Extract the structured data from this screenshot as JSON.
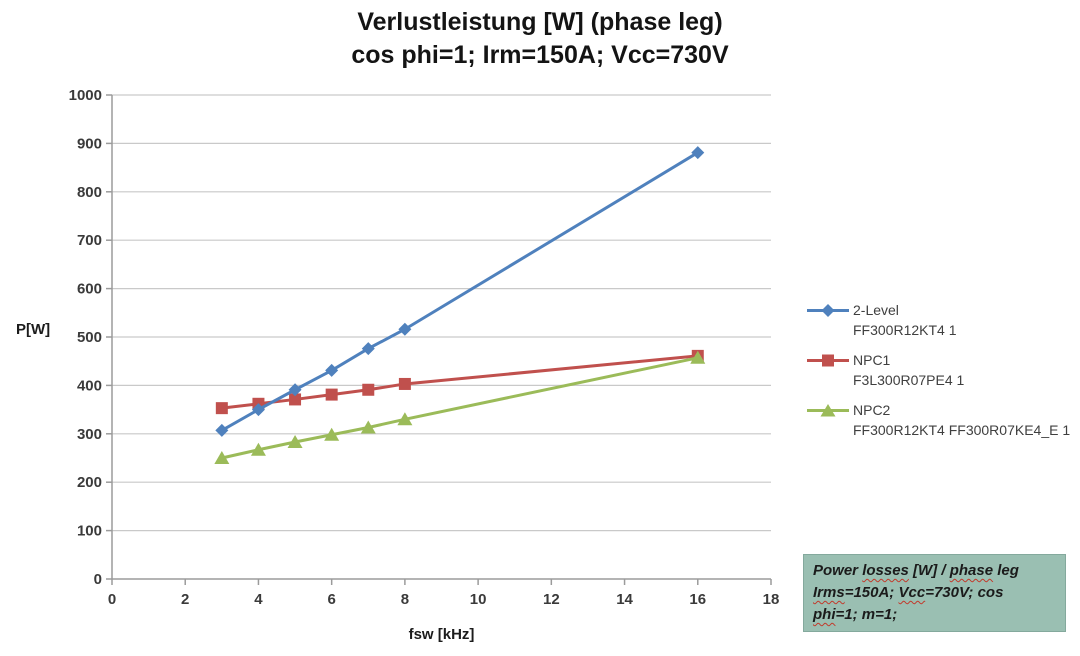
{
  "title": {
    "line1": "Verlustleistung [W] (phase leg)",
    "line2": "cos phi=1; Irm=150A; Vcc=730V"
  },
  "axes": {
    "y_title": "P[W]",
    "x_title": "fsw [kHz]",
    "x_ticks": [
      0,
      2,
      4,
      6,
      8,
      10,
      12,
      14,
      16,
      18
    ],
    "y_ticks": [
      0,
      100,
      200,
      300,
      400,
      500,
      600,
      700,
      800,
      900,
      1000
    ]
  },
  "chart_data": {
    "type": "line",
    "title": "Verlustleistung [W] (phase leg); cos phi=1; Irm=150A; Vcc=730V",
    "xlabel": "fsw [kHz]",
    "ylabel": "P[W]",
    "xlim": [
      0,
      18
    ],
    "ylim": [
      0,
      1000
    ],
    "grid": "horizontal",
    "legend_position": "right",
    "x": [
      3,
      4,
      5,
      6,
      7,
      8,
      16
    ],
    "series": [
      {
        "name": "2-Level",
        "part": "FF300R12KT4 1",
        "color": "#4F81BD",
        "marker": "diamond",
        "values": [
          307,
          350,
          391,
          431,
          476,
          516,
          881
        ]
      },
      {
        "name": "NPC1",
        "part": "F3L300R07PE4 1",
        "color": "#C0504D",
        "marker": "square",
        "values": [
          353,
          362,
          371,
          381,
          391,
          403,
          461
        ]
      },
      {
        "name": "NPC2",
        "part": "FF300R12KT4 FF300R07KE4_E 1",
        "color": "#9BBB59",
        "marker": "triangle",
        "values": [
          250,
          267,
          283,
          298,
          313,
          330,
          457
        ]
      }
    ]
  },
  "note": {
    "bg_color": "#9abfb2",
    "underline_color": "#c2392b",
    "lines": [
      [
        {
          "t": "Power ",
          "u": false
        },
        {
          "t": "losses",
          "u": true
        },
        {
          "t": " [W] / ",
          "u": false
        },
        {
          "t": "phase",
          "u": true
        },
        {
          "t": " leg",
          "u": false
        }
      ],
      [
        {
          "t": "Irms",
          "u": true
        },
        {
          "t": "=150A; ",
          "u": false
        },
        {
          "t": "Vcc",
          "u": true
        },
        {
          "t": "=730V; cos",
          "u": false
        }
      ],
      [
        {
          "t": "phi",
          "u": true
        },
        {
          "t": "=1; m=1;",
          "u": false
        }
      ]
    ]
  }
}
